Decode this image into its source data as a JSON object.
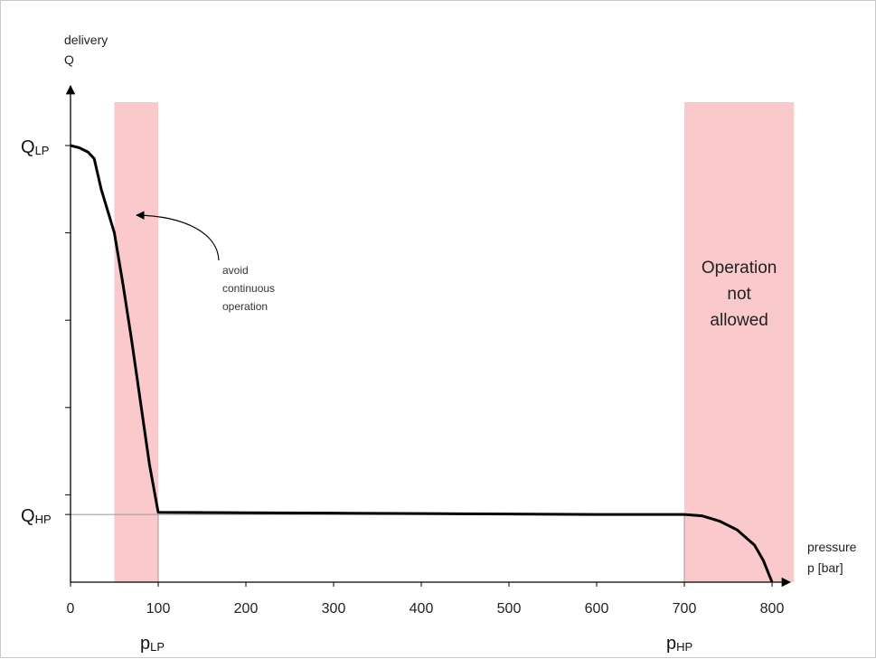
{
  "chart_data": {
    "type": "line",
    "title": "",
    "xlabel": "pressure\np [bar]",
    "ylabel": "delivery\nQ",
    "xlim": [
      0,
      830
    ],
    "ylim": [
      0,
      1.1
    ],
    "x_ticks": [
      0,
      100,
      200,
      300,
      400,
      500,
      600,
      700,
      800
    ],
    "y_minor_ticks": [
      0.2,
      0.4,
      0.6,
      0.8
    ],
    "series": [
      {
        "x": [
          0,
          10,
          20,
          27,
          35,
          50,
          60,
          70,
          80,
          90,
          100,
          200,
          300,
          400,
          500,
          600,
          700,
          720,
          740,
          760,
          780,
          790,
          800
        ],
        "y": [
          1.0,
          0.995,
          0.985,
          0.97,
          0.9,
          0.8,
          0.68,
          0.55,
          0.41,
          0.27,
          0.16,
          0.159,
          0.158,
          0.157,
          0.156,
          0.155,
          0.155,
          0.152,
          0.14,
          0.12,
          0.085,
          0.05,
          0.0
        ]
      }
    ],
    "marked_levels": {
      "q_lp": {
        "y": 1.0,
        "label_main": "Q",
        "label_sub": "LP"
      },
      "q_hp": {
        "y": 0.155,
        "label_main": "Q",
        "label_sub": "HP"
      }
    },
    "marked_pressures": {
      "p_lp": {
        "x": 100,
        "label_main": "p",
        "label_sub": "LP"
      },
      "p_hp": {
        "x": 700,
        "label_main": "p",
        "label_sub": "HP"
      }
    },
    "zones": [
      {
        "x0": 50,
        "x1": 100,
        "label": ""
      },
      {
        "x0": 700,
        "x1": 825,
        "label": [
          "Operation",
          "not",
          "allowed"
        ]
      }
    ],
    "annotation": {
      "text": [
        "avoid",
        "continuous",
        "operation"
      ],
      "target_x": 75,
      "target_y": 0.84
    },
    "colors": {
      "zone": "#f9c9cb",
      "curve": "#000000",
      "axis": "#000000",
      "guide": "#9a9a9a"
    }
  },
  "axis": {
    "x_title_line1": "pressure",
    "x_title_line2": "p [bar]",
    "y_title_line1": "delivery",
    "y_title_line2": "Q"
  }
}
